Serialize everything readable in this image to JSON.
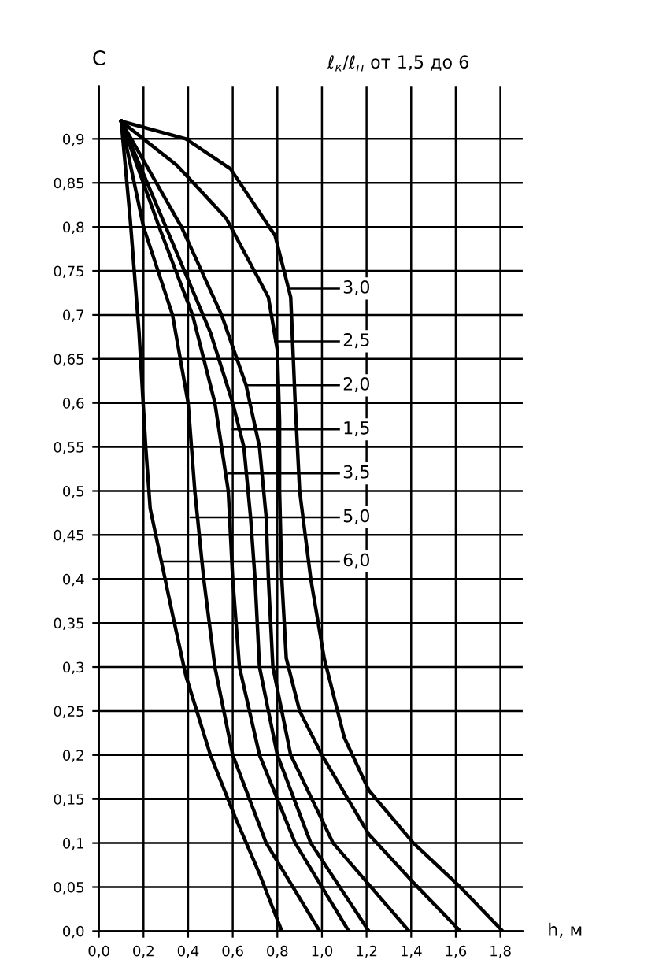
{
  "chart_data": {
    "type": "line",
    "ylabel": "С",
    "xlabel": "h, м",
    "annotations": [
      "ℓ$_{к}$/ℓ$_{п}$ от 1,5 до 6",
      {
        "text": "3,0",
        "x": 0.85,
        "y": 0.73
      },
      {
        "text": "2,5",
        "x": 0.79,
        "y": 0.67
      },
      {
        "text": "2,0",
        "x": 0.66,
        "y": 0.62
      },
      {
        "text": "1,5",
        "x": 0.6,
        "y": 0.57
      },
      {
        "text": "3,5",
        "x": 0.58,
        "y": 0.52
      },
      {
        "text": "5,0",
        "x": 0.41,
        "y": 0.47
      },
      {
        "text": "6,0",
        "x": 0.28,
        "y": 0.42
      }
    ],
    "series": [
      {
        "color": "#000000",
        "x": [
          0.1,
          0.39,
          0.59,
          0.79,
          0.86,
          0.88,
          0.9,
          0.95,
          1.01,
          1.1,
          1.21,
          1.41,
          1.62,
          1.81
        ],
        "values": [
          0.92,
          0.9,
          0.866,
          0.79,
          0.72,
          0.6,
          0.5,
          0.4,
          0.31,
          0.22,
          0.16,
          0.1,
          0.05,
          0.0
        ]
      },
      {
        "color": "#000000",
        "x": [
          0.1,
          0.35,
          0.57,
          0.76,
          0.8,
          0.81,
          0.81,
          0.82,
          0.84,
          0.9,
          1.0,
          1.21,
          1.41,
          1.62
        ],
        "values": [
          0.92,
          0.87,
          0.81,
          0.72,
          0.66,
          0.58,
          0.5,
          0.4,
          0.31,
          0.25,
          0.2,
          0.11,
          0.055,
          0.0
        ]
      },
      {
        "color": "#000000",
        "x": [
          0.1,
          0.37,
          0.55,
          0.66,
          0.72,
          0.75,
          0.76,
          0.78,
          0.86,
          1.05,
          1.39
        ],
        "values": [
          0.92,
          0.8,
          0.7,
          0.62,
          0.55,
          0.47,
          0.4,
          0.3,
          0.2,
          0.1,
          0.0
        ]
      },
      {
        "color": "#000000",
        "x": [
          0.1,
          0.3,
          0.5,
          0.6,
          0.65,
          0.68,
          0.7,
          0.72,
          0.8,
          0.95,
          1.21
        ],
        "values": [
          0.92,
          0.8,
          0.68,
          0.6,
          0.55,
          0.47,
          0.4,
          0.3,
          0.2,
          0.1,
          0.0
        ]
      },
      {
        "color": "#000000",
        "x": [
          0.1,
          0.27,
          0.42,
          0.52,
          0.58,
          0.6,
          0.63,
          0.72,
          0.88,
          1.12
        ],
        "values": [
          0.92,
          0.8,
          0.7,
          0.6,
          0.5,
          0.4,
          0.3,
          0.2,
          0.1,
          0.0
        ]
      },
      {
        "color": "#000000",
        "x": [
          0.1,
          0.2,
          0.33,
          0.4,
          0.43,
          0.47,
          0.52,
          0.6,
          0.75,
          0.99
        ],
        "values": [
          0.92,
          0.8,
          0.7,
          0.6,
          0.5,
          0.4,
          0.3,
          0.2,
          0.1,
          0.0
        ]
      },
      {
        "color": "#000000",
        "x": [
          0.1,
          0.14,
          0.18,
          0.21,
          0.23,
          0.28,
          0.33,
          0.39,
          0.5,
          0.61,
          0.72,
          0.82
        ],
        "values": [
          0.92,
          0.81,
          0.68,
          0.55,
          0.48,
          0.42,
          0.36,
          0.29,
          0.2,
          0.13,
          0.065,
          0.0
        ]
      }
    ],
    "xlim": [
      0,
      1.9
    ],
    "ylim": [
      0,
      0.96
    ],
    "xticks": [
      {
        "value": 0,
        "label": "0,0"
      },
      {
        "value": 0.2,
        "label": "0,2"
      },
      {
        "value": 0.4,
        "label": "0,4"
      },
      {
        "value": 0.6,
        "label": "0,6"
      },
      {
        "value": 0.8,
        "label": "0,8"
      },
      {
        "value": 1.0,
        "label": "1,0"
      },
      {
        "value": 1.2,
        "label": "1,2"
      },
      {
        "value": 1.4,
        "label": "1,4"
      },
      {
        "value": 1.6,
        "label": "1,6"
      },
      {
        "value": 1.8,
        "label": "1,8"
      }
    ],
    "yticks": [
      {
        "value": 0,
        "label": "0,0"
      },
      {
        "value": 0.05,
        "label": "0,05"
      },
      {
        "value": 0.1,
        "label": "0,1"
      },
      {
        "value": 0.15,
        "label": "0,15"
      },
      {
        "value": 0.2,
        "label": "0,2"
      },
      {
        "value": 0.25,
        "label": "0,25"
      },
      {
        "value": 0.3,
        "label": "0,3"
      },
      {
        "value": 0.35,
        "label": "0,35"
      },
      {
        "value": 0.4,
        "label": "0,4"
      },
      {
        "value": 0.45,
        "label": "0,45"
      },
      {
        "value": 0.5,
        "label": "0,5"
      },
      {
        "value": 0.55,
        "label": "0,55"
      },
      {
        "value": 0.6,
        "label": "0,6"
      },
      {
        "value": 0.65,
        "label": "0,65"
      },
      {
        "value": 0.7,
        "label": "0,7"
      },
      {
        "value": 0.75,
        "label": "0,75"
      },
      {
        "value": 0.8,
        "label": "0,8"
      },
      {
        "value": 0.85,
        "label": "0,85"
      },
      {
        "value": 0.9,
        "label": "0,9"
      }
    ],
    "grid": true,
    "marker": "none",
    "line_style": "solid"
  }
}
